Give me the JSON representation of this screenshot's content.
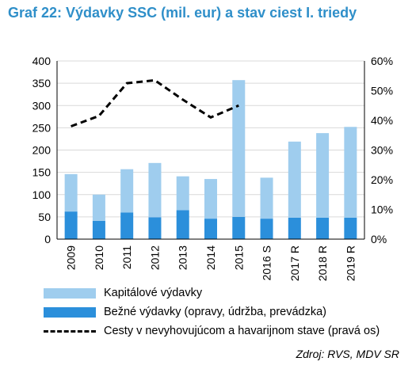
{
  "title": "Graf 22: Výdavky SSC (mil. eur) a stav ciest I. triedy",
  "source": "Zdroj: RVS, MDV SR",
  "colors": {
    "capital": "#9fcdee",
    "current": "#2b8fdb",
    "line": "#000000",
    "title": "#2f8fc9",
    "grid": "#d9d9d9"
  },
  "legend": {
    "capital": "Kapitálové výdavky",
    "current": "Bežné výdavky (opravy, údržba, prevádzka)",
    "line": "Cesty v nevyhovujúcom a havarijnom stave (pravá os)"
  },
  "chart_data": {
    "type": "bar",
    "stacked": true,
    "categories": [
      "2009",
      "2010",
      "2011",
      "2012",
      "2013",
      "2014",
      "2015",
      "2016 S",
      "2017 R",
      "2018 R",
      "2019 R"
    ],
    "series": [
      {
        "name": "Bežné výdavky (opravy, údržba, prevádzka)",
        "type": "bar",
        "axis": "left",
        "values": [
          62,
          41,
          60,
          49,
          65,
          46,
          50,
          46,
          48,
          48,
          48
        ]
      },
      {
        "name": "Kapitálové výdavky",
        "type": "bar",
        "axis": "left",
        "values": [
          84,
          59,
          97,
          122,
          76,
          89,
          307,
          92,
          171,
          190,
          204
        ]
      },
      {
        "name": "Cesty v nevyhovujúcom a havarijnom stave (pravá os)",
        "type": "line",
        "axis": "right",
        "style": "dashed",
        "values": [
          38,
          41.5,
          52.5,
          53.5,
          47,
          41,
          45,
          null,
          null,
          null,
          null
        ]
      }
    ],
    "ylim": [
      0,
      400
    ],
    "yticks": [
      "0",
      "50",
      "100",
      "150",
      "200",
      "250",
      "300",
      "350",
      "400"
    ],
    "y2lim": [
      0,
      60
    ],
    "y2ticks": [
      "0%",
      "10%",
      "20%",
      "30%",
      "40%",
      "50%",
      "60%"
    ],
    "grid": true,
    "legend_position": "bottom"
  }
}
